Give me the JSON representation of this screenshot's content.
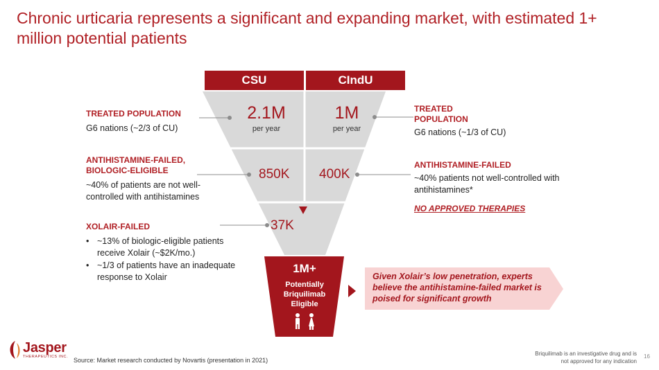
{
  "title": "Chronic urticaria represents a significant and expanding market, with estimated 1+ million potential patients",
  "funnel": {
    "headers": [
      "CSU",
      "CIndU"
    ],
    "csu_treated": "2.1M",
    "cindu_treated": "1M",
    "per_year": "per year",
    "csu_failed": "850K",
    "cindu_failed": "400K",
    "xolair_failed": "37K",
    "eligible_big": "1M+",
    "eligible_sub": "Potentially Briquilimab Eligible"
  },
  "left": {
    "treated_heading": "TREATED POPULATION",
    "treated_text": "G6 nations (~2/3 of CU)",
    "antihist_heading": "ANTIHISTAMINE-FAILED, BIOLOGIC-ELIGIBLE",
    "antihist_text": "~40% of patients are not well-controlled with antihistamines",
    "xolair_heading": "XOLAIR-FAILED",
    "xolair_bullets": [
      "~13% of biologic-eligible patients receive Xolair (~$2K/mo.)",
      "~1/3 of patients have an inadequate response to Xolair"
    ]
  },
  "right": {
    "treated_heading": "TREATED POPULATION",
    "treated_text": "G6 nations (~1/3 of CU)",
    "antihist_heading": "ANTIHISTAMINE-FAILED",
    "antihist_text": "~40% patients not well-controlled with antihistamines*",
    "no_approved": "NO APPROVED THERAPIES"
  },
  "callout": "Given Xolair’s low penetration, experts believe the antihistamine-failed market is poised for significant growth",
  "source": "Source: Market research conducted by Novartis (presentation in 2021)",
  "disclaimer": "Briquilimab is an investigative drug and is not approved for any indication",
  "page_number": "16",
  "logo": {
    "name": "Jasper",
    "sub": "THERAPEUTICS INC."
  },
  "colors": {
    "brand_red": "#a3161d",
    "title_red": "#b01f24",
    "funnel_gray": "#d9d9d9",
    "callout_pink": "#f8d3d3"
  },
  "icons": [
    "people-icon",
    "arrow-down-icon",
    "arrow-right-icon"
  ]
}
